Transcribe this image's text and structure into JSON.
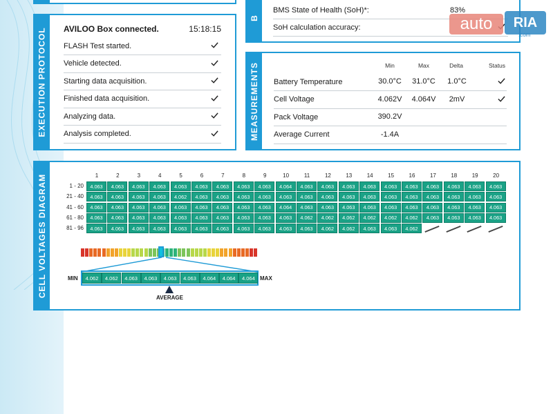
{
  "colors": {
    "accent": "#1f9bd6",
    "cell": "#1aa286"
  },
  "top_left_panel": {},
  "bms_panel": {
    "label": "B",
    "rows": [
      {
        "label": "BMS State of Health (SoH)*:",
        "value": "83%"
      },
      {
        "label": "SoH calculation accuracy:",
        "value": ""
      }
    ]
  },
  "execution": {
    "label": "EXECUTION PROTOCOL",
    "header": "AVILOO Box connected.",
    "time": "15:18:15",
    "steps": [
      "FLASH Test started.",
      "Vehicle detected.",
      "Starting data acquisition.",
      "Finished data acquisition.",
      "Analyzing data.",
      "Analysis completed."
    ]
  },
  "measurements": {
    "label": "MEASUREMENTS",
    "headers": [
      "Min",
      "Max",
      "Delta",
      "Status"
    ],
    "rows": [
      {
        "name": "Battery Temperature",
        "min": "30.0°C",
        "max": "31.0°C",
        "delta": "1.0°C",
        "status": true
      },
      {
        "name": "Cell Voltage",
        "min": "4.062V",
        "max": "4.064V",
        "delta": "2mV",
        "status": true
      },
      {
        "name": "Pack Voltage",
        "min": "390.2V",
        "max": "",
        "delta": "",
        "status": false
      },
      {
        "name": "Average Current",
        "min": "-1.4A",
        "max": "",
        "delta": "",
        "status": false
      }
    ]
  },
  "cells": {
    "label": "CELL VOLTAGES DIAGRAM",
    "columns": [
      "1",
      "2",
      "3",
      "4",
      "5",
      "6",
      "7",
      "8",
      "9",
      "10",
      "11",
      "12",
      "13",
      "14",
      "15",
      "16",
      "17",
      "18",
      "19",
      "20"
    ],
    "rows": [
      {
        "label": "1 - 20",
        "values": [
          "4.063",
          "4.063",
          "4.063",
          "4.063",
          "4.063",
          "4.063",
          "4.063",
          "4.063",
          "4.063",
          "4.064",
          "4.063",
          "4.063",
          "4.063",
          "4.063",
          "4.063",
          "4.063",
          "4.063",
          "4.063",
          "4.063",
          "4.063"
        ]
      },
      {
        "label": "21 - 40",
        "values": [
          "4.063",
          "4.063",
          "4.063",
          "4.063",
          "4.062",
          "4.063",
          "4.063",
          "4.063",
          "4.063",
          "4.063",
          "4.063",
          "4.063",
          "4.063",
          "4.063",
          "4.063",
          "4.063",
          "4.063",
          "4.063",
          "4.063",
          "4.063"
        ]
      },
      {
        "label": "41 - 60",
        "values": [
          "4.063",
          "4.063",
          "4.063",
          "4.063",
          "4.063",
          "4.063",
          "4.063",
          "4.063",
          "4.063",
          "4.064",
          "4.063",
          "4.063",
          "4.063",
          "4.063",
          "4.063",
          "4.063",
          "4.063",
          "4.063",
          "4.063",
          "4.063"
        ]
      },
      {
        "label": "61 - 80",
        "values": [
          "4.063",
          "4.063",
          "4.063",
          "4.063",
          "4.063",
          "4.063",
          "4.063",
          "4.063",
          "4.063",
          "4.063",
          "4.062",
          "4.062",
          "4.062",
          "4.062",
          "4.062",
          "4.062",
          "4.063",
          "4.063",
          "4.063",
          "4.063"
        ]
      },
      {
        "label": "81 - 96",
        "values": [
          "4.063",
          "4.063",
          "4.063",
          "4.063",
          "4.063",
          "4.063",
          "4.063",
          "4.063",
          "4.063",
          "4.063",
          "4.063",
          "4.062",
          "4.062",
          "4.063",
          "4.063",
          "4.062"
        ]
      }
    ],
    "histogram": [
      "4.062",
      "4.062",
      "4.063",
      "4.063",
      "4.063",
      "4.063",
      "4.064",
      "4.064",
      "4.064"
    ],
    "min_label": "MIN",
    "max_label": "MAX",
    "average_label": "AVERAGE"
  },
  "watermark": {
    "text_auto": "auto",
    "text_ria": "RIA",
    "suffix": ".com"
  }
}
